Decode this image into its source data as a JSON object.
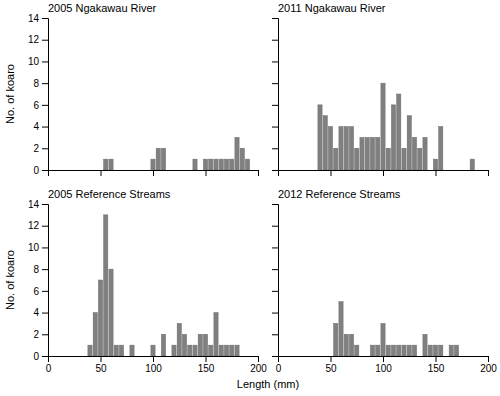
{
  "chart_data": [
    {
      "type": "bar",
      "title": "2005 Ngakawau River",
      "x": [
        55,
        60,
        100,
        105,
        110,
        140,
        150,
        155,
        160,
        165,
        170,
        175,
        180,
        185,
        190
      ],
      "values": [
        1,
        1,
        1,
        2,
        2,
        1,
        1,
        1,
        1,
        1,
        1,
        1,
        3,
        2,
        1
      ],
      "color": "#808080",
      "xlim": [
        0,
        200
      ],
      "ylim": [
        0,
        14
      ],
      "xticks": [
        0,
        50,
        100,
        150,
        200
      ],
      "yticks": [
        0,
        2,
        4,
        6,
        8,
        10,
        12,
        14
      ],
      "ylabel": "No. of koaro",
      "tick_labels": "y"
    },
    {
      "type": "bar",
      "title": "2011 Ngakawau River",
      "x": [
        40,
        45,
        50,
        55,
        60,
        65,
        70,
        75,
        80,
        85,
        90,
        95,
        100,
        105,
        110,
        115,
        120,
        125,
        130,
        135,
        140,
        150,
        155,
        185
      ],
      "values": [
        6,
        5,
        4,
        2,
        4,
        4,
        4,
        2,
        3,
        3,
        3,
        3,
        8,
        2,
        6,
        7,
        2,
        5,
        3,
        2,
        3,
        1,
        4,
        1
      ],
      "color": "#808080",
      "xlim": [
        0,
        200
      ],
      "ylim": [
        0,
        14
      ],
      "xticks": [
        0,
        50,
        100,
        150,
        200
      ],
      "yticks": [
        0,
        2,
        4,
        6,
        8,
        10,
        12,
        14
      ],
      "tick_labels": false
    },
    {
      "type": "bar",
      "title": "2005 Reference Streams",
      "x": [
        40,
        45,
        50,
        55,
        60,
        65,
        70,
        80,
        100,
        110,
        120,
        125,
        130,
        135,
        140,
        145,
        150,
        155,
        160,
        165,
        170,
        175,
        180
      ],
      "values": [
        1,
        4,
        7,
        13,
        8,
        1,
        1,
        1,
        1,
        2,
        1,
        3,
        2,
        1,
        1,
        2,
        2,
        1,
        4,
        1,
        1,
        1,
        1
      ],
      "color": "#808080",
      "xlim": [
        0,
        200
      ],
      "ylim": [
        0,
        14
      ],
      "xticks": [
        0,
        50,
        100,
        150,
        200
      ],
      "yticks": [
        0,
        2,
        4,
        6,
        8,
        10,
        12,
        14
      ],
      "ylabel": "No. of koaro",
      "xlabel": "Length (mm)"
    },
    {
      "type": "bar",
      "title": "2012 Reference Streams",
      "x": [
        55,
        60,
        65,
        70,
        75,
        90,
        95,
        100,
        105,
        110,
        115,
        120,
        125,
        130,
        140,
        145,
        150,
        155,
        165,
        170
      ],
      "values": [
        3,
        5,
        2,
        2,
        1,
        1,
        1,
        3,
        1,
        1,
        1,
        1,
        1,
        1,
        2,
        1,
        1,
        1,
        1,
        1
      ],
      "color": "#808080",
      "xlim": [
        0,
        200
      ],
      "ylim": [
        0,
        14
      ],
      "xticks": [
        0,
        50,
        100,
        150,
        200
      ],
      "yticks": [
        0,
        2,
        4,
        6,
        8,
        10,
        12,
        14
      ],
      "tick_labels": "x"
    }
  ]
}
